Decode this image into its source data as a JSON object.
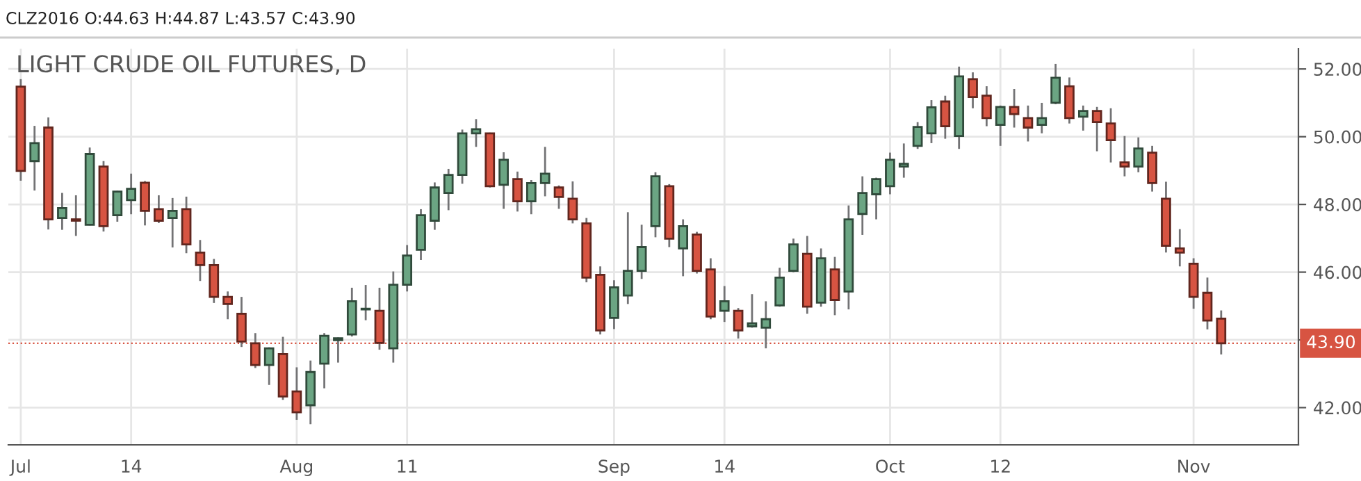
{
  "chart_data": {
    "type": "candlestick",
    "title": "LIGHT CRUDE OIL FUTURES, D",
    "annotations": [
      "CLZ2016 O:44.63 H:44.87 L:43.57 C:43.90"
    ],
    "categories": [
      "Jul",
      null,
      null,
      null,
      null,
      null,
      null,
      null,
      "14",
      null,
      null,
      null,
      null,
      null,
      null,
      null,
      null,
      null,
      null,
      null,
      "Aug",
      null,
      null,
      null,
      null,
      null,
      null,
      null,
      "11",
      null,
      null,
      null,
      null,
      null,
      null,
      null,
      null,
      null,
      null,
      null,
      null,
      null,
      null,
      "Sep",
      null,
      null,
      null,
      null,
      null,
      null,
      null,
      "14",
      null,
      null,
      null,
      null,
      null,
      null,
      null,
      null,
      null,
      null,
      null,
      "Oct",
      null,
      null,
      null,
      null,
      null,
      null,
      null,
      "12",
      null,
      null,
      null,
      null,
      null,
      null,
      null,
      null,
      null,
      null,
      null,
      null,
      null,
      "Nov",
      null,
      null
    ],
    "ohlc": [
      [
        51.48,
        51.7,
        48.7,
        48.99
      ],
      [
        49.28,
        50.32,
        48.41,
        49.81
      ],
      [
        50.27,
        50.57,
        47.26,
        47.56
      ],
      [
        47.6,
        48.34,
        47.25,
        47.89
      ],
      [
        47.56,
        48.27,
        47.07,
        47.52
      ],
      [
        47.4,
        49.68,
        47.38,
        49.49
      ],
      [
        49.12,
        49.28,
        47.2,
        47.36
      ],
      [
        47.68,
        48.4,
        47.49,
        48.38
      ],
      [
        48.13,
        48.91,
        47.71,
        48.46
      ],
      [
        48.64,
        48.69,
        47.38,
        47.81
      ],
      [
        47.86,
        48.27,
        47.45,
        47.52
      ],
      [
        47.6,
        48.19,
        46.73,
        47.81
      ],
      [
        47.86,
        48.23,
        46.56,
        46.82
      ],
      [
        46.58,
        46.95,
        45.74,
        46.21
      ],
      [
        46.21,
        46.39,
        45.09,
        45.27
      ],
      [
        45.27,
        45.43,
        44.61,
        45.06
      ],
      [
        44.77,
        45.27,
        43.79,
        43.95
      ],
      [
        43.9,
        44.2,
        43.17,
        43.26
      ],
      [
        43.26,
        43.78,
        42.67,
        43.75
      ],
      [
        43.58,
        44.09,
        42.23,
        42.33
      ],
      [
        42.48,
        43.19,
        41.64,
        41.86
      ],
      [
        42.07,
        43.39,
        41.51,
        43.05
      ],
      [
        43.3,
        44.2,
        42.57,
        44.12
      ],
      [
        43.99,
        44.07,
        43.33,
        44.05
      ],
      [
        44.16,
        45.54,
        44.1,
        45.14
      ],
      [
        44.9,
        45.62,
        44.58,
        44.91
      ],
      [
        44.86,
        45.54,
        43.71,
        43.91
      ],
      [
        43.75,
        46.02,
        43.33,
        45.63
      ],
      [
        45.63,
        46.8,
        45.43,
        46.49
      ],
      [
        46.66,
        47.86,
        46.36,
        47.68
      ],
      [
        47.52,
        48.65,
        47.25,
        48.5
      ],
      [
        48.34,
        49.05,
        47.83,
        48.87
      ],
      [
        48.87,
        50.21,
        48.61,
        50.1
      ],
      [
        50.1,
        50.52,
        49.7,
        50.22
      ],
      [
        50.1,
        50.12,
        48.5,
        48.54
      ],
      [
        48.58,
        49.54,
        47.87,
        49.32
      ],
      [
        48.75,
        48.97,
        47.79,
        48.09
      ],
      [
        48.09,
        48.72,
        47.71,
        48.63
      ],
      [
        48.63,
        49.7,
        48.24,
        48.91
      ],
      [
        48.5,
        48.56,
        47.87,
        48.22
      ],
      [
        48.17,
        48.68,
        47.44,
        47.56
      ],
      [
        47.44,
        47.6,
        45.7,
        45.84
      ],
      [
        45.92,
        46.17,
        44.16,
        44.28
      ],
      [
        44.65,
        45.76,
        44.32,
        45.55
      ],
      [
        45.31,
        47.77,
        45.06,
        46.04
      ],
      [
        46.04,
        47.4,
        45.8,
        46.74
      ],
      [
        47.36,
        48.95,
        47.03,
        48.83
      ],
      [
        48.54,
        48.6,
        46.74,
        46.99
      ],
      [
        46.7,
        47.56,
        45.88,
        47.36
      ],
      [
        47.11,
        47.19,
        45.96,
        46.04
      ],
      [
        46.08,
        46.41,
        44.61,
        44.69
      ],
      [
        44.86,
        45.59,
        44.53,
        45.14
      ],
      [
        44.86,
        44.94,
        44.04,
        44.28
      ],
      [
        44.4,
        45.35,
        44.36,
        44.49
      ],
      [
        44.36,
        45.14,
        43.75,
        44.61
      ],
      [
        45.02,
        46.13,
        44.98,
        45.84
      ],
      [
        46.04,
        46.99,
        46.0,
        46.82
      ],
      [
        46.54,
        47.07,
        44.77,
        44.98
      ],
      [
        45.1,
        46.7,
        44.98,
        46.41
      ],
      [
        46.08,
        46.45,
        44.73,
        45.18
      ],
      [
        45.43,
        47.97,
        44.9,
        47.56
      ],
      [
        47.72,
        48.83,
        47.1,
        48.34
      ],
      [
        48.3,
        48.79,
        47.56,
        48.75
      ],
      [
        48.54,
        49.53,
        48.3,
        49.32
      ],
      [
        49.12,
        49.8,
        48.79,
        49.2
      ],
      [
        49.73,
        50.43,
        49.64,
        50.29
      ],
      [
        50.1,
        51.08,
        49.81,
        50.87
      ],
      [
        51.04,
        51.21,
        49.94,
        50.31
      ],
      [
        50.02,
        52.07,
        49.64,
        51.78
      ],
      [
        51.7,
        51.9,
        50.84,
        51.17
      ],
      [
        51.21,
        51.49,
        50.31,
        50.55
      ],
      [
        50.35,
        50.92,
        49.73,
        50.88
      ],
      [
        50.88,
        51.41,
        50.27,
        50.67
      ],
      [
        50.55,
        50.92,
        49.86,
        50.27
      ],
      [
        50.35,
        51.0,
        50.1,
        50.55
      ],
      [
        51.0,
        52.15,
        50.96,
        51.74
      ],
      [
        51.49,
        51.75,
        50.39,
        50.55
      ],
      [
        50.59,
        50.92,
        50.18,
        50.76
      ],
      [
        50.76,
        50.88,
        49.57,
        50.43
      ],
      [
        50.39,
        50.84,
        49.24,
        49.9
      ],
      [
        49.24,
        50.02,
        48.83,
        49.12
      ],
      [
        49.12,
        49.98,
        48.95,
        49.65
      ],
      [
        49.53,
        49.73,
        48.38,
        48.63
      ],
      [
        48.17,
        48.67,
        46.58,
        46.78
      ],
      [
        46.7,
        47.27,
        46.17,
        46.58
      ],
      [
        46.25,
        46.41,
        44.92,
        45.27
      ],
      [
        45.39,
        45.84,
        44.31,
        44.57
      ],
      [
        44.63,
        44.87,
        43.57,
        43.9
      ]
    ],
    "colors": [
      "#d75442",
      "#6ba583",
      "#d75442",
      "#6ba583",
      "#d75442",
      "#6ba583",
      "#d75442",
      "#6ba583",
      "#6ba583",
      "#d75442",
      "#d75442",
      "#6ba583",
      "#d75442",
      "#d75442",
      "#d75442",
      "#d75442",
      "#d75442",
      "#d75442",
      "#6ba583",
      "#d75442",
      "#d75442",
      "#6ba583",
      "#6ba583",
      "#6ba583",
      "#6ba583",
      "#6ba583",
      "#d75442",
      "#6ba583",
      "#6ba583",
      "#6ba583",
      "#6ba583",
      "#6ba583",
      "#6ba583",
      "#6ba583",
      "#d75442",
      "#6ba583",
      "#d75442",
      "#6ba583",
      "#6ba583",
      "#d75442",
      "#d75442",
      "#d75442",
      "#d75442",
      "#6ba583",
      "#6ba583",
      "#6ba583",
      "#6ba583",
      "#d75442",
      "#6ba583",
      "#d75442",
      "#d75442",
      "#6ba583",
      "#d75442",
      "#6ba583",
      "#6ba583",
      "#6ba583",
      "#6ba583",
      "#d75442",
      "#6ba583",
      "#d75442",
      "#6ba583",
      "#6ba583",
      "#6ba583",
      "#6ba583",
      "#6ba583",
      "#6ba583",
      "#6ba583",
      "#d75442",
      "#6ba583",
      "#d75442",
      "#d75442",
      "#6ba583",
      "#d75442",
      "#d75442",
      "#6ba583",
      "#6ba583",
      "#d75442",
      "#6ba583",
      "#d75442",
      "#d75442",
      "#d75442",
      "#6ba583",
      "#d75442",
      "#d75442",
      "#d75442",
      "#d75442",
      "#d75442",
      "#d75442"
    ],
    "ylim": [
      40.9,
      52.6
    ],
    "yticks": [
      {
        "value": 42,
        "label": "42.00"
      },
      {
        "value": 44,
        "label": null
      },
      {
        "value": 46,
        "label": "46.00"
      },
      {
        "value": 48,
        "label": "48.00"
      },
      {
        "value": 50,
        "label": "50.00"
      },
      {
        "value": 52,
        "label": "52.00"
      }
    ],
    "ref_lines": [
      {
        "axis": "y",
        "value": 43.9,
        "label": "43.90",
        "color": "#d75442",
        "line_style": "dotted"
      }
    ],
    "grid": true
  }
}
